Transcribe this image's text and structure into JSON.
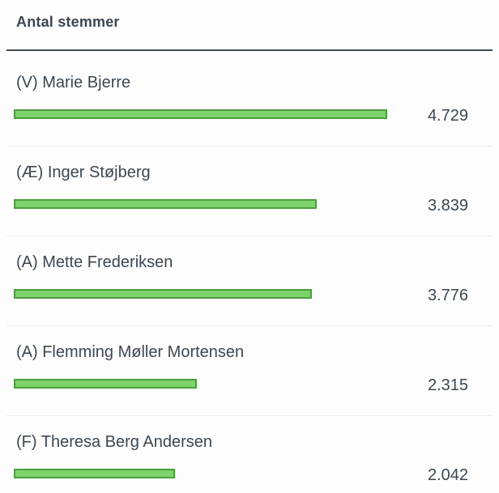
{
  "header": {
    "title": "Antal stemmer"
  },
  "chart_data": {
    "type": "bar",
    "orientation": "horizontal",
    "title": "Antal stemmer",
    "categories": [
      "(V) Marie Bjerre",
      "(Æ) Inger Støjberg",
      "(A) Mette Frederiksen",
      "(A) Flemming Møller Mortensen",
      "(F) Theresa Berg Andersen"
    ],
    "values": [
      4729,
      3839,
      3776,
      2315,
      2042
    ],
    "value_labels": [
      "4.729",
      "3.839",
      "3.776",
      "2.315",
      "2.042"
    ],
    "xlim": [
      0,
      4729
    ],
    "grid": false,
    "legend": false,
    "colors": {
      "bar_fill": "#7ed36c",
      "bar_border": "#4c9e3f",
      "text": "#3d4751",
      "title_divider": "#414b55",
      "row_divider": "#ececec",
      "background": "#fdfdfd"
    }
  }
}
